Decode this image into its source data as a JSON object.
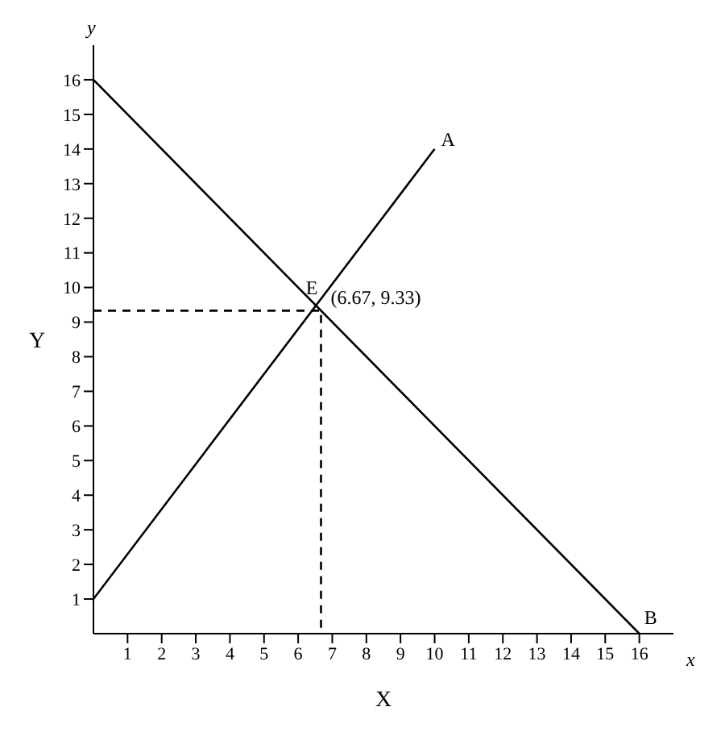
{
  "chart_data": {
    "type": "line",
    "xlabel": "X",
    "ylabel": "Y",
    "series": [
      {
        "x": [
          0,
          10
        ],
        "values": [
          1,
          14
        ],
        "color": "#000000"
      },
      {
        "x": [
          0,
          16
        ],
        "values": [
          16,
          0
        ],
        "color": "#000000"
      },
      {
        "x": [
          0,
          6.67,
          6.67
        ],
        "values": [
          9.33,
          9.33,
          0
        ],
        "color": "#000000",
        "line_style": "dashed"
      }
    ],
    "annotations": [
      {
        "text": "A",
        "x": 10,
        "y": 14
      },
      {
        "text": "B",
        "x": 16,
        "y": 0
      },
      {
        "text": "E",
        "x": 6.67,
        "y": 9.33
      },
      {
        "text": "(6.67, 9.33)",
        "x": 6.67,
        "y": 9.33
      },
      "x",
      "y"
    ],
    "xlim": [
      0,
      17
    ],
    "ylim": [
      0,
      17
    ],
    "xticks": [
      1,
      2,
      3,
      4,
      5,
      6,
      7,
      8,
      9,
      10,
      11,
      12,
      13,
      14,
      15,
      16
    ],
    "yticks": [
      1,
      2,
      3,
      4,
      5,
      6,
      7,
      8,
      9,
      10,
      11,
      12,
      13,
      14,
      15,
      16
    ],
    "marker": "none",
    "line_style": "solid"
  }
}
